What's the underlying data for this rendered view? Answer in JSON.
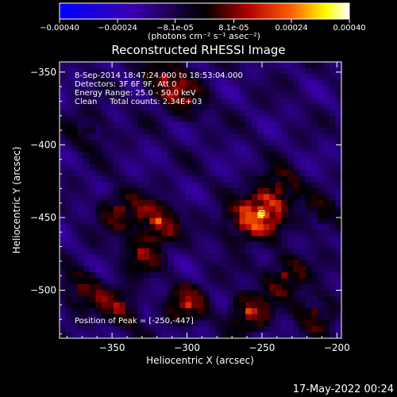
{
  "chart_data": {
    "type": "heatmap",
    "title": "Reconstructed RHESSI Image",
    "colorbar": {
      "ticks": [
        "-0.00040",
        "-0.00024",
        "-8.1e-05",
        "8.1e-05",
        "0.00024",
        "0.00040"
      ],
      "range": [
        -0.0004,
        0.0004
      ],
      "units_label": "(photons cm⁻² s⁻¹ asec⁻²)",
      "colors": [
        "#0000ff",
        "#3a00b0",
        "#000000",
        "#b00000",
        "#ff6000",
        "#ffff00",
        "#ffffff"
      ]
    },
    "xlabel": "Heliocentric X (arcsec)",
    "ylabel": "Heliocentric Y (arcsec)",
    "xlim": [
      -385,
      -197
    ],
    "ylim": [
      -533,
      -343
    ],
    "xticks": [
      -350,
      -300,
      -250,
      -200
    ],
    "yticks": [
      -350,
      -400,
      -450,
      -500
    ],
    "xtick_labels": [
      "−350",
      "−300",
      "−250",
      "−200"
    ],
    "ytick_labels": [
      "−350",
      "−400",
      "−450",
      "−500"
    ],
    "annotations": [
      "8-Sep-2014 18:47:24.000 to 18:53:04.000",
      "Detectors: 3F 6F 9F, Att 0",
      "Energy Range: 25.0 - 50.0 keV",
      "Clean     Total counts: 2.34E+03"
    ],
    "peak_label": "Position of Peak = [-250,-447]",
    "peak_position": [
      -250,
      -447
    ],
    "hot_spots": [
      {
        "x": -250,
        "y": -447,
        "amp": 1.0
      },
      {
        "x": -238,
        "y": -430,
        "amp": 0.6
      },
      {
        "x": -265,
        "y": -455,
        "amp": 0.55
      },
      {
        "x": -320,
        "y": -453,
        "amp": 0.8
      },
      {
        "x": -345,
        "y": -445,
        "amp": 0.55
      },
      {
        "x": -330,
        "y": -475,
        "amp": 0.5
      },
      {
        "x": -315,
        "y": -355,
        "amp": 0.65
      },
      {
        "x": -300,
        "y": -370,
        "amp": 0.45
      },
      {
        "x": -235,
        "y": -490,
        "amp": 0.6
      },
      {
        "x": -258,
        "y": -515,
        "amp": 0.7
      },
      {
        "x": -300,
        "y": -510,
        "amp": 0.6
      },
      {
        "x": -345,
        "y": -512,
        "amp": 0.55
      },
      {
        "x": -370,
        "y": -500,
        "amp": 0.5
      },
      {
        "x": -215,
        "y": -515,
        "amp": 0.5
      },
      {
        "x": -210,
        "y": -450,
        "amp": 0.35
      },
      {
        "x": -365,
        "y": -390,
        "amp": 0.35
      }
    ]
  },
  "footer_date": "17-May-2022 00:24"
}
